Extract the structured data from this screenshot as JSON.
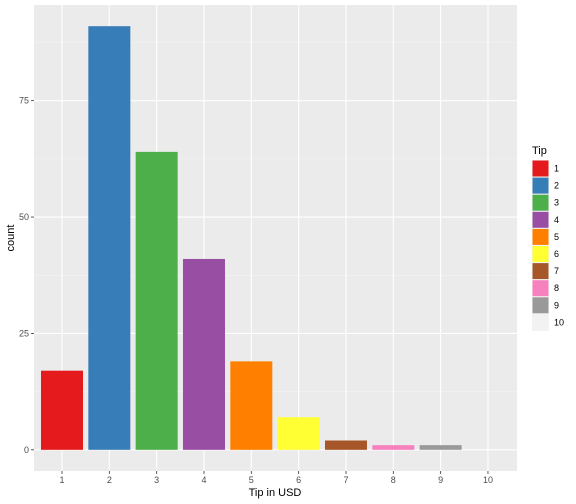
{
  "chart_data": {
    "type": "bar",
    "xlabel": "Tip in USD",
    "ylabel": "count",
    "categories": [
      "1",
      "2",
      "3",
      "4",
      "5",
      "6",
      "7",
      "8",
      "9",
      "10"
    ],
    "values": [
      17,
      91,
      64,
      41,
      19,
      7,
      2,
      1,
      1,
      0
    ],
    "colors": [
      "#E41A1C",
      "#377EB8",
      "#4DAF4A",
      "#984EA3",
      "#FF7F00",
      "#FFFF33",
      "#A65628",
      "#F781BF",
      "#999999",
      "#F2F2F2"
    ],
    "y_ticks": [
      0,
      25,
      50,
      75
    ],
    "ylim": [
      -4.55,
      95.55
    ],
    "grid": true,
    "legend": {
      "title": "Tip",
      "position": "right",
      "labels": [
        "1",
        "2",
        "3",
        "4",
        "5",
        "6",
        "7",
        "8",
        "9",
        "10"
      ]
    }
  }
}
